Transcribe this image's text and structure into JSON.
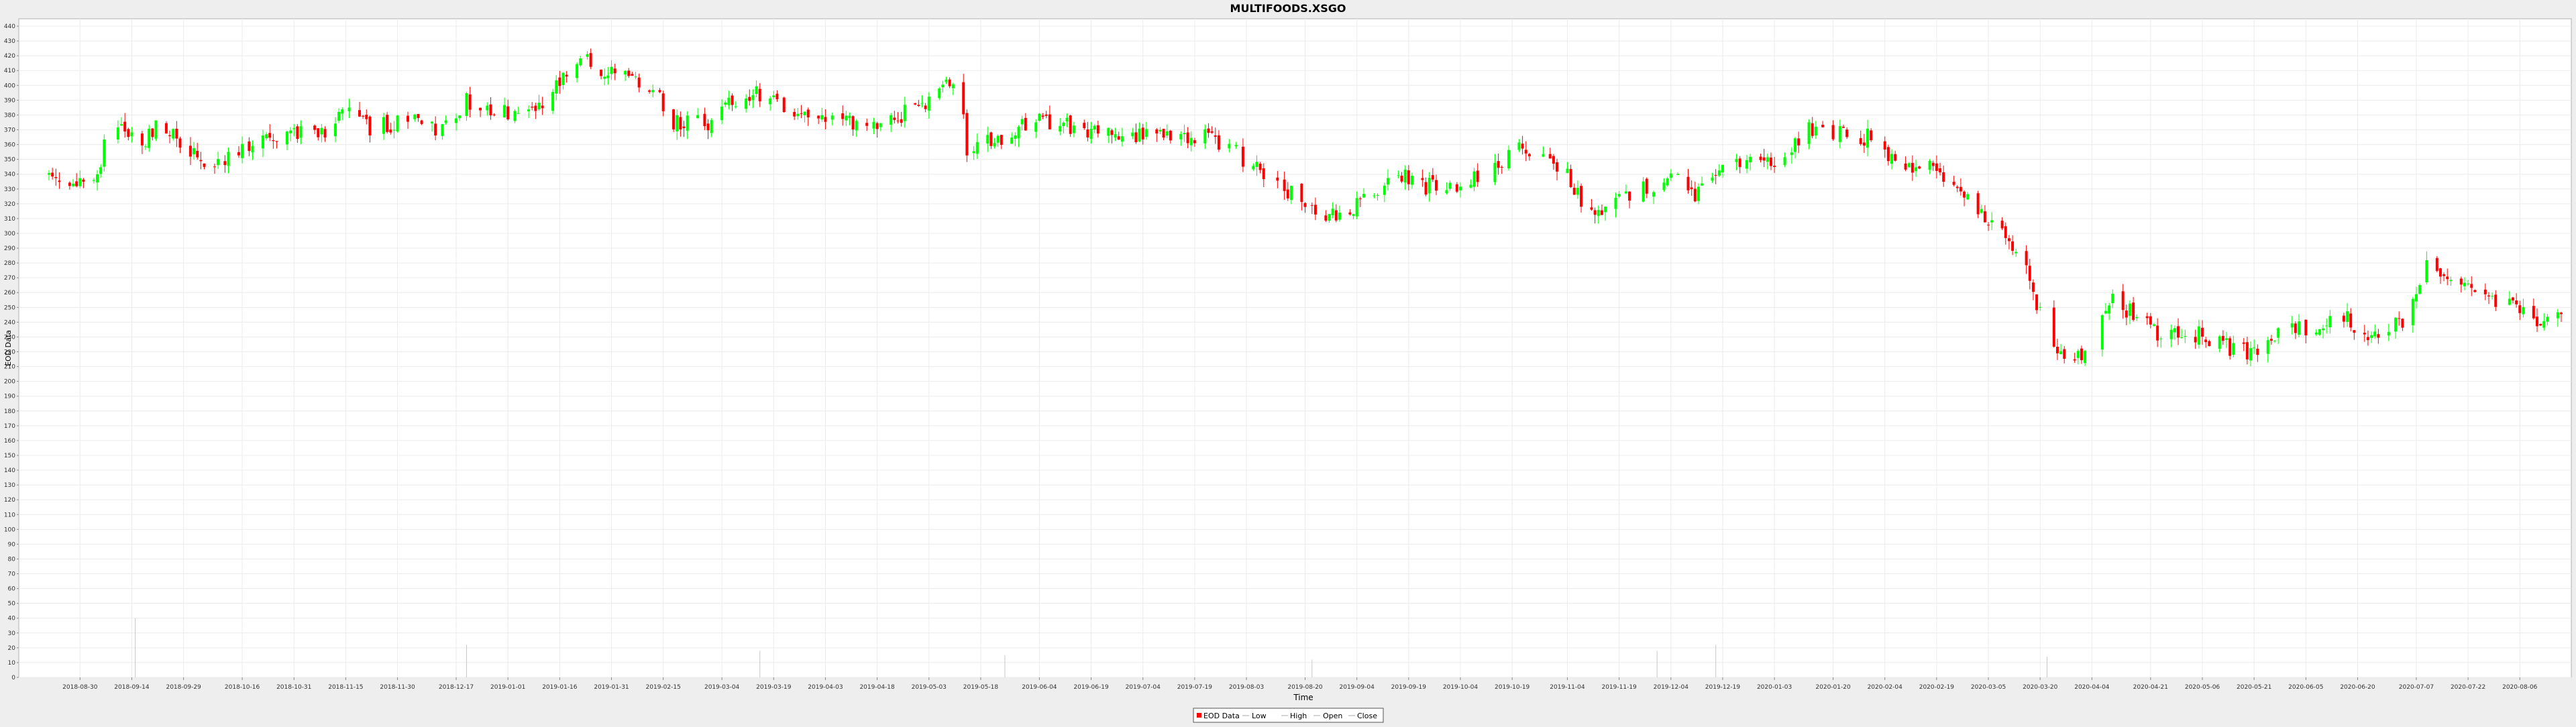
{
  "chart_data": {
    "type": "candlestick",
    "title": "MULTIFOODS.XSGO",
    "xlabel": "Time",
    "ylabel": "EOD Data",
    "ylim": [
      0,
      445
    ],
    "y_tick_step": 10,
    "x_start": "2018-08-21",
    "x_end": "2020-08-18",
    "grid": true,
    "legend_position": "bottom-center",
    "legend": [
      "EOD Data",
      "Low",
      "High",
      "Open",
      "Close"
    ],
    "x_ticks": [
      "2018-08-30",
      "2018-09-14",
      "2018-09-29",
      "2018-10-16",
      "2018-10-31",
      "2018-11-15",
      "2018-11-30",
      "2018-12-17",
      "2019-01-01",
      "2019-01-16",
      "2019-01-31",
      "2019-02-15",
      "2019-03-04",
      "2019-03-19",
      "2019-04-03",
      "2019-04-18",
      "2019-05-03",
      "2019-05-18",
      "2019-06-04",
      "2019-06-19",
      "2019-07-04",
      "2019-07-19",
      "2019-08-03",
      "2019-08-20",
      "2019-09-04",
      "2019-09-19",
      "2019-10-04",
      "2019-10-19",
      "2019-11-04",
      "2019-11-19",
      "2019-12-04",
      "2019-12-19",
      "2020-01-03",
      "2020-01-20",
      "2020-02-04",
      "2020-02-19",
      "2020-03-05",
      "2020-03-20",
      "2020-04-04",
      "2020-04-21",
      "2020-05-06",
      "2020-05-21",
      "2020-06-05",
      "2020-06-20",
      "2020-07-07",
      "2020-07-22",
      "2020-08-06"
    ],
    "price_anchors": [
      [
        "2018-08-22",
        338
      ],
      [
        "2018-08-28",
        330
      ],
      [
        "2018-09-04",
        335
      ],
      [
        "2018-09-08",
        383
      ],
      [
        "2018-09-12",
        370
      ],
      [
        "2018-09-18",
        362
      ],
      [
        "2018-09-22",
        378
      ],
      [
        "2018-09-28",
        358
      ],
      [
        "2018-10-08",
        345
      ],
      [
        "2018-10-20",
        362
      ],
      [
        "2018-10-31",
        370
      ],
      [
        "2018-11-10",
        368
      ],
      [
        "2018-11-15",
        382
      ],
      [
        "2018-11-22",
        372
      ],
      [
        "2018-12-05",
        376
      ],
      [
        "2018-12-12",
        370
      ],
      [
        "2018-12-20",
        390
      ],
      [
        "2019-01-01",
        382
      ],
      [
        "2019-01-10",
        385
      ],
      [
        "2019-01-16",
        400
      ],
      [
        "2019-01-22",
        420
      ],
      [
        "2019-01-28",
        408
      ],
      [
        "2019-02-05",
        405
      ],
      [
        "2019-02-12",
        398
      ],
      [
        "2019-02-18",
        375
      ],
      [
        "2019-02-28",
        374
      ],
      [
        "2019-03-07",
        388
      ],
      [
        "2019-03-15",
        395
      ],
      [
        "2019-03-25",
        382
      ],
      [
        "2019-04-08",
        378
      ],
      [
        "2019-04-15",
        372
      ],
      [
        "2019-04-22",
        378
      ],
      [
        "2019-05-01",
        385
      ],
      [
        "2019-05-08",
        398
      ],
      [
        "2019-05-12",
        392
      ],
      [
        "2019-05-14",
        358
      ],
      [
        "2019-05-20",
        362
      ],
      [
        "2019-05-28",
        368
      ],
      [
        "2019-06-02",
        378
      ],
      [
        "2019-06-10",
        374
      ],
      [
        "2019-06-20",
        367
      ],
      [
        "2019-07-01",
        365
      ],
      [
        "2019-07-10",
        366
      ],
      [
        "2019-07-24",
        366
      ],
      [
        "2019-08-01",
        352
      ],
      [
        "2019-08-10",
        335
      ],
      [
        "2019-08-18",
        325
      ],
      [
        "2019-08-24",
        310
      ],
      [
        "2019-09-01",
        312
      ],
      [
        "2019-09-08",
        328
      ],
      [
        "2019-09-16",
        342
      ],
      [
        "2019-09-24",
        332
      ],
      [
        "2019-10-04",
        332
      ],
      [
        "2019-10-14",
        345
      ],
      [
        "2019-10-20",
        358
      ],
      [
        "2019-10-28",
        350
      ],
      [
        "2019-11-04",
        340
      ],
      [
        "2019-11-10",
        315
      ],
      [
        "2019-11-16",
        320
      ],
      [
        "2019-11-26",
        330
      ],
      [
        "2019-12-04",
        340
      ],
      [
        "2019-12-10",
        325
      ],
      [
        "2019-12-18",
        340
      ],
      [
        "2019-12-24",
        350
      ],
      [
        "2020-01-03",
        348
      ],
      [
        "2020-01-08",
        360
      ],
      [
        "2020-01-13",
        372
      ],
      [
        "2020-01-20",
        368
      ],
      [
        "2020-01-30",
        365
      ],
      [
        "2020-02-06",
        350
      ],
      [
        "2020-02-12",
        340
      ],
      [
        "2020-02-18",
        348
      ],
      [
        "2020-02-26",
        325
      ],
      [
        "2020-03-04",
        310
      ],
      [
        "2020-03-10",
        300
      ],
      [
        "2020-03-15",
        285
      ],
      [
        "2020-03-18",
        260
      ],
      [
        "2020-03-24",
        222
      ],
      [
        "2020-03-30",
        215
      ],
      [
        "2020-04-04",
        225
      ],
      [
        "2020-04-10",
        255
      ],
      [
        "2020-04-16",
        245
      ],
      [
        "2020-04-24",
        230
      ],
      [
        "2020-05-06",
        232
      ],
      [
        "2020-05-14",
        222
      ],
      [
        "2020-05-22",
        218
      ],
      [
        "2020-06-01",
        238
      ],
      [
        "2020-06-08",
        228
      ],
      [
        "2020-06-14",
        248
      ],
      [
        "2020-06-20",
        235
      ],
      [
        "2020-06-28",
        232
      ],
      [
        "2020-07-05",
        245
      ],
      [
        "2020-07-10",
        282
      ],
      [
        "2020-07-18",
        265
      ],
      [
        "2020-07-25",
        260
      ],
      [
        "2020-08-03",
        250
      ],
      [
        "2020-08-10",
        243
      ],
      [
        "2020-08-18",
        242
      ]
    ],
    "volume_spikes": [
      [
        "2018-09-15",
        40
      ],
      [
        "2018-12-20",
        22
      ],
      [
        "2019-03-15",
        18
      ],
      [
        "2019-05-25",
        15
      ],
      [
        "2019-08-22",
        12
      ],
      [
        "2019-11-30",
        18
      ],
      [
        "2019-12-17",
        22
      ],
      [
        "2020-03-22",
        14
      ]
    ]
  }
}
